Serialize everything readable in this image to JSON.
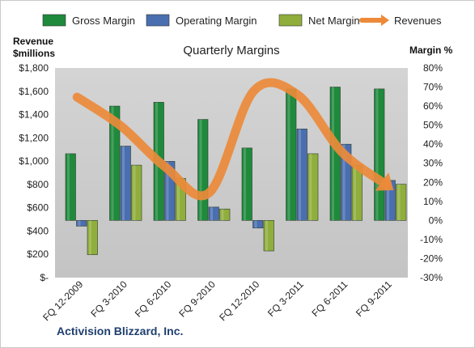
{
  "chart_data": {
    "type": "bar",
    "title": "Quarterly Margins",
    "footer": "Activision Blizzard, Inc.",
    "left_axis": {
      "label_line1": "Revenue",
      "label_line2": "$millions",
      "min": 0,
      "max": 1800,
      "ticks": [
        0,
        200,
        400,
        600,
        800,
        1000,
        1200,
        1400,
        1600,
        1800
      ],
      "tick_labels": [
        "$-",
        "$200",
        "$400",
        "$600",
        "$800",
        "$1,000",
        "$1,200",
        "$1,400",
        "$1,600",
        "$1,800"
      ]
    },
    "right_axis": {
      "label": "Margin %",
      "min": -30,
      "max": 80,
      "ticks": [
        -30,
        -20,
        -10,
        0,
        10,
        20,
        30,
        40,
        50,
        60,
        70,
        80
      ],
      "tick_labels": [
        "-30%",
        "-20%",
        "-10%",
        "0%",
        "10%",
        "20%",
        "30%",
        "40%",
        "50%",
        "60%",
        "70%",
        "80%"
      ]
    },
    "categories": [
      "FQ 12-2009",
      "FQ 3-2010",
      "FQ 6-2010",
      "FQ 9-2010",
      "FQ 12-2010",
      "FQ 3-2011",
      "FQ 6-2011",
      "FQ 9-2011"
    ],
    "series": [
      {
        "name": "Gross Margin",
        "axis": "right",
        "color": "#1f8a3c",
        "values": [
          35,
          60,
          62,
          53,
          38,
          69,
          70,
          69
        ]
      },
      {
        "name": "Operating Margin",
        "axis": "right",
        "color": "#4a6fb0",
        "values": [
          -3,
          39,
          31,
          7,
          -4,
          48,
          40,
          21
        ]
      },
      {
        "name": "Net Margin",
        "axis": "right",
        "color": "#8fae3c",
        "values": [
          -18,
          29,
          22,
          6,
          -16,
          35,
          29,
          19
        ]
      },
      {
        "name": "Revenues",
        "axis": "left",
        "type": "line",
        "color": "#ec8a3a",
        "values": [
          1550,
          1300,
          950,
          730,
          1600,
          1570,
          1080,
          800
        ]
      }
    ],
    "legend_position": "top",
    "grid": false
  }
}
